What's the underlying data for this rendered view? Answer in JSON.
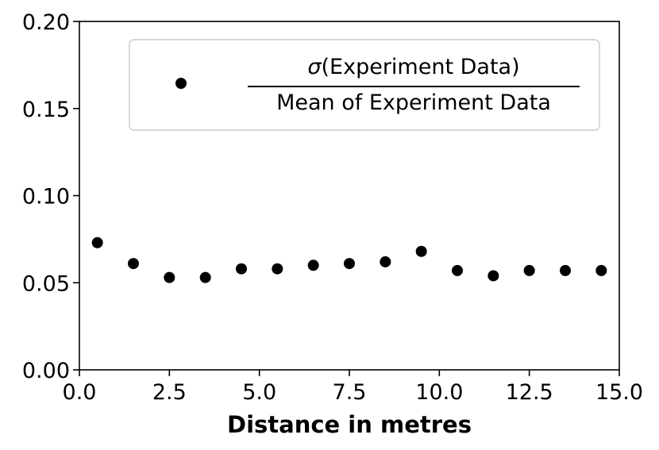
{
  "chart_data": {
    "type": "scatter",
    "xlabel": "Distance in metres",
    "ylabel": "",
    "xlim": [
      0.0,
      15.0
    ],
    "ylim": [
      0.0,
      0.2
    ],
    "xticks": [
      "0.0",
      "2.5",
      "5.0",
      "7.5",
      "10.0",
      "12.5",
      "15.0"
    ],
    "yticks": [
      "0.00",
      "0.05",
      "0.10",
      "0.15",
      "0.20"
    ],
    "grid": false,
    "legend_position": "top-right",
    "series": [
      {
        "name": "σ(Experiment Data) / Mean of Experiment Data",
        "legend_numerator_prefix": "σ",
        "legend_numerator_rest": "(Experiment Data)",
        "legend_denominator": "Mean of Experiment Data",
        "color": "#000000",
        "x": [
          0.5,
          1.5,
          2.5,
          3.5,
          4.5,
          5.5,
          6.5,
          7.5,
          8.5,
          9.5,
          10.5,
          11.5,
          12.5,
          13.5,
          14.5
        ],
        "y": [
          0.073,
          0.061,
          0.053,
          0.053,
          0.058,
          0.058,
          0.06,
          0.061,
          0.062,
          0.068,
          0.057,
          0.054,
          0.057,
          0.057,
          0.057
        ]
      }
    ]
  }
}
